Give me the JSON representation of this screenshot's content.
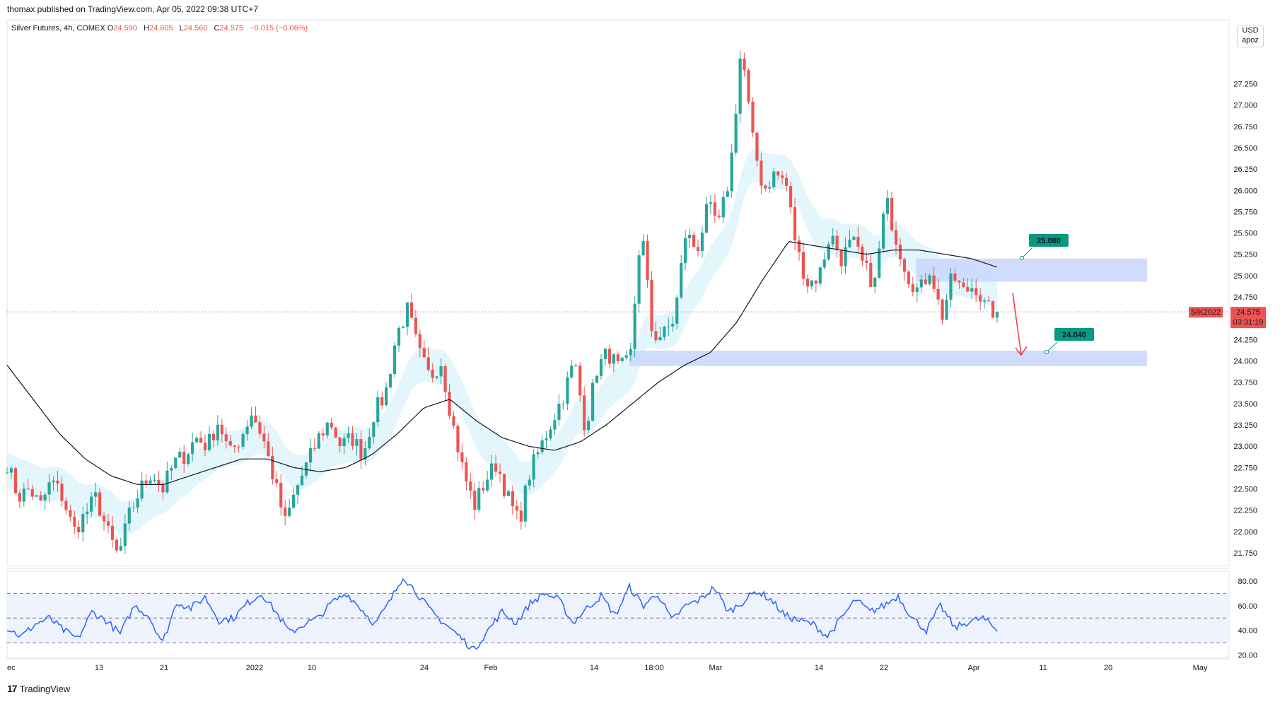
{
  "publisher_line": "thomax published on TradingView.com, Apr 05, 2022 09:38 UTC+7",
  "legend": {
    "symbol": "Silver Futures, 4h, COMEX",
    "open_label": "O",
    "open": "24.590",
    "high_label": "H",
    "high": "24.605",
    "low_label": "L",
    "low": "24.560",
    "close_label": "C",
    "close": "24.575",
    "change": "−0.015 (−0.06%)"
  },
  "currency_box": {
    "line1": "USD",
    "line2": "apoz"
  },
  "price_tag": {
    "symbol": "SIK2022",
    "price": "24.575",
    "countdown": "03:31:19"
  },
  "footer": {
    "brand": "TradingView"
  },
  "colors": {
    "up": "#26a69a",
    "down": "#ef5350",
    "rsi": "#2962ff",
    "zone": "#c9d6fb",
    "label": "#089981",
    "arrow": "#f23645",
    "band": "#d6f2fb"
  },
  "chart_data": {
    "type": "candlestick",
    "symbol": "SIK2022",
    "timeframe": "4h",
    "ylim": [
      21.6,
      28.0
    ],
    "yticks": [
      21.75,
      22.0,
      22.25,
      22.5,
      22.75,
      23.0,
      23.25,
      23.5,
      23.75,
      24.0,
      24.25,
      24.5,
      24.75,
      25.0,
      25.25,
      25.5,
      25.75,
      26.0,
      26.25,
      26.5,
      26.75,
      27.0,
      27.25
    ],
    "ytick_labels": [
      "21.750",
      "22.000",
      "22.250",
      "22.500",
      "22.750",
      "23.000",
      "23.250",
      "23.500",
      "23.750",
      "24.000",
      "24.250",
      "24.500",
      "24.750",
      "25.000",
      "25.250",
      "25.500",
      "25.750",
      "26.000",
      "26.250",
      "26.500",
      "26.750",
      "27.000",
      "27.250"
    ],
    "xtick_labels": [
      "ec",
      "13",
      "21",
      "2022",
      "10",
      "24",
      "Feb",
      "14",
      "18:00",
      "Mar",
      "14",
      "22",
      "Apr",
      "11",
      "20",
      "May"
    ],
    "close_path": [
      22.8,
      22.4,
      22.5,
      22.3,
      22.6,
      22.4,
      22.0,
      22.2,
      22.4,
      22.0,
      21.7,
      22.2,
      22.5,
      22.7,
      22.5,
      22.8,
      22.9,
      23.1,
      23.0,
      23.3,
      22.9,
      23.1,
      23.4,
      23.1,
      22.6,
      22.1,
      22.5,
      22.8,
      23.1,
      23.3,
      23.0,
      23.1,
      22.9,
      23.4,
      23.6,
      24.3,
      24.6,
      24.1,
      23.8,
      24.0,
      23.3,
      22.7,
      22.3,
      22.6,
      22.8,
      22.4,
      22.1,
      22.7,
      23.0,
      23.3,
      23.6,
      24.0,
      23.2,
      23.9,
      24.1,
      23.9,
      24.0,
      25.6,
      24.3,
      24.3,
      24.5,
      25.5,
      25.3,
      25.8,
      25.6,
      26.2,
      27.7,
      26.6,
      26.0,
      26.2,
      26.1,
      25.3,
      24.9,
      25.0,
      25.5,
      25.2,
      25.4,
      25.1,
      24.9,
      25.9,
      25.4,
      25.0,
      24.8,
      25.1,
      24.5,
      25.0,
      24.8,
      24.9,
      24.6,
      24.575
    ],
    "ma_path": [
      23.95,
      23.55,
      23.15,
      22.85,
      22.65,
      22.55,
      22.55,
      22.65,
      22.75,
      22.85,
      22.85,
      22.75,
      22.7,
      22.75,
      22.9,
      23.15,
      23.45,
      23.55,
      23.3,
      23.1,
      23.0,
      22.95,
      23.05,
      23.25,
      23.5,
      23.75,
      23.95,
      24.1,
      24.45,
      24.95,
      25.4,
      25.35,
      25.3,
      25.25,
      25.3,
      25.3,
      25.25,
      25.2,
      25.1
    ],
    "rsi_ylim": [
      18,
      88
    ],
    "rsi_levels": [
      30,
      50,
      70
    ],
    "rsi_tick_labels": [
      "80.00",
      "60.00",
      "40.00",
      "20.00"
    ],
    "rsi_path": [
      42,
      35,
      45,
      50,
      40,
      33,
      55,
      48,
      37,
      60,
      52,
      30,
      63,
      58,
      67,
      48,
      50,
      62,
      70,
      55,
      38,
      45,
      50,
      63,
      70,
      58,
      45,
      62,
      84,
      70,
      55,
      45,
      35,
      24,
      40,
      55,
      46,
      62,
      70,
      65,
      46,
      58,
      68,
      52,
      75,
      60,
      70,
      48,
      60,
      65,
      75,
      55,
      63,
      72,
      65,
      52,
      48,
      45,
      35,
      50,
      65,
      55,
      60,
      68,
      50,
      40,
      60,
      42,
      47,
      50,
      40
    ],
    "zones": [
      {
        "label": "25.080",
        "low": 24.93,
        "high": 25.2
      },
      {
        "label": "24.040",
        "low": 23.94,
        "high": 24.12
      }
    ],
    "current_price": 24.575,
    "arrow": {
      "from_price": 24.8,
      "to_price": 24.07
    }
  }
}
